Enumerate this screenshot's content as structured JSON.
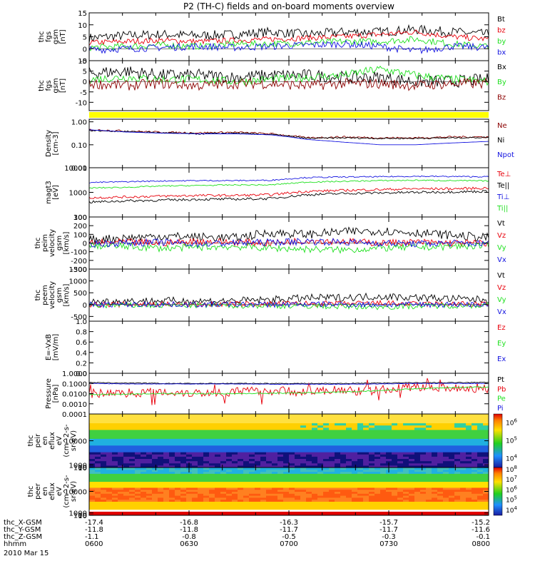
{
  "title": "P2 (TH-C) fields and on-board moments overview",
  "date_label": "2010 Mar 15",
  "colors": {
    "black": "#000000",
    "red": "#e8000b",
    "green": "#1fe01f",
    "blue": "#1414e0",
    "yellow": "#ffff00",
    "darkred": "#8b0000"
  },
  "chart_data": [
    {
      "type": "line",
      "id": "p1",
      "ylabel": [
        "thc",
        "fgs",
        "gsm",
        "[nT]"
      ],
      "ylim": [
        -5,
        15
      ],
      "yticks": [
        -5,
        0,
        5,
        10,
        15
      ],
      "series": [
        {
          "name": "Bt",
          "color": "black",
          "base": [
            4.5,
            5.5,
            6,
            5.5,
            6,
            7,
            6,
            7,
            7,
            8,
            7,
            6
          ],
          "noise": 2
        },
        {
          "name": "bz",
          "color": "red",
          "base": [
            2.5,
            3,
            3.5,
            3,
            3.5,
            4,
            4.5,
            5,
            6,
            7,
            5,
            4
          ],
          "noise": 1.2
        },
        {
          "name": "by",
          "color": "green",
          "base": [
            0.5,
            1,
            1.5,
            1,
            2,
            2,
            2.5,
            3,
            3,
            4,
            2,
            1
          ],
          "noise": 1.4
        },
        {
          "name": "bx",
          "color": "blue",
          "base": [
            -0.5,
            0,
            0.5,
            1,
            0.5,
            1,
            1.5,
            2,
            1,
            -1,
            1,
            0.5
          ],
          "noise": 1.5
        }
      ]
    },
    {
      "type": "line",
      "id": "p2",
      "ylabel": [
        "thc",
        "fgs",
        "gsm",
        "[nT]"
      ],
      "ylim": [
        -14,
        10
      ],
      "yticks": [
        -10,
        -5,
        0,
        5,
        10
      ],
      "series": [
        {
          "name": "Bx",
          "color": "black",
          "base": [
            4,
            5,
            3,
            3,
            2,
            3,
            3,
            2,
            2,
            0,
            0,
            1
          ],
          "noise": 3
        },
        {
          "name": "By",
          "color": "green",
          "base": [
            1,
            2,
            1,
            1,
            0,
            1,
            2,
            3,
            6,
            3,
            1,
            0
          ],
          "noise": 2
        },
        {
          "name": "Bz",
          "color": "darkred",
          "base": [
            -1,
            -2,
            -1,
            -2,
            -1,
            -1,
            -2,
            -1,
            -1,
            -2,
            -1,
            -1
          ],
          "noise": 2.5
        }
      ]
    },
    {
      "type": "line",
      "id": "p3",
      "log": true,
      "ylabel": [
        "Density",
        "[cm-3]"
      ],
      "ylim": [
        0.01,
        1.3
      ],
      "yticks": [
        0.01,
        0.1,
        1.0
      ],
      "yticklabels": [
        "0.01",
        "0.10",
        "1.00"
      ],
      "series": [
        {
          "name": "Ne",
          "color": "darkred",
          "base": [
            0.45,
            0.4,
            0.35,
            0.33,
            0.35,
            0.3,
            0.2,
            0.22,
            0.2,
            0.2,
            0.22,
            0.22
          ],
          "noise": 0.08
        },
        {
          "name": "Ni",
          "color": "black",
          "base": [
            0.42,
            0.38,
            0.33,
            0.3,
            0.32,
            0.28,
            0.19,
            0.2,
            0.19,
            0.19,
            0.2,
            0.21
          ],
          "noise": 0.06
        },
        {
          "name": "Npot",
          "color": "blue",
          "base": [
            0.45,
            0.36,
            0.32,
            0.3,
            0.3,
            0.27,
            0.17,
            0.13,
            0.1,
            0.1,
            0.12,
            0.14
          ],
          "noise": 0
        }
      ]
    },
    {
      "type": "line",
      "id": "p4",
      "log": true,
      "ylabel": [
        "magt3",
        "[eV]"
      ],
      "ylim": [
        100,
        10000
      ],
      "yticks": [
        100,
        1000,
        10000
      ],
      "yticklabels": [
        "100",
        "1000",
        "10000"
      ],
      "series": [
        {
          "name": "Te⊥",
          "color": "red",
          "base": [
            600,
            650,
            700,
            750,
            750,
            800,
            1100,
            1200,
            1300,
            1400,
            1400,
            1500
          ],
          "noise": 0.1
        },
        {
          "name": "Te||",
          "color": "black",
          "base": [
            400,
            450,
            480,
            520,
            530,
            560,
            800,
            900,
            950,
            1000,
            1050,
            1100
          ],
          "noise": 0.1
        },
        {
          "name": "Ti⊥",
          "color": "blue",
          "base": [
            2500,
            2700,
            2900,
            3000,
            3000,
            3100,
            4000,
            4200,
            4300,
            4500,
            4400,
            4300
          ],
          "noise": 0.05
        },
        {
          "name": "Ti||",
          "color": "green",
          "base": [
            1500,
            1600,
            1800,
            1900,
            2000,
            2000,
            2600,
            2800,
            3000,
            3100,
            3000,
            2900
          ],
          "noise": 0.05
        }
      ]
    },
    {
      "type": "line",
      "id": "p5",
      "ylabel": [
        "thc",
        "peim",
        "velocity",
        "gsm",
        "[km/s]"
      ],
      "ylim": [
        -300,
        300
      ],
      "yticks": [
        -300,
        -200,
        -100,
        0,
        100,
        200,
        300
      ],
      "series": [
        {
          "name": "Vt",
          "color": "black",
          "base": [
            40,
            60,
            80,
            70,
            60,
            120,
            100,
            130,
            140,
            120,
            90,
            60
          ],
          "noise": 50
        },
        {
          "name": "Vz",
          "color": "red",
          "base": [
            0,
            10,
            0,
            20,
            10,
            0,
            30,
            20,
            0,
            10,
            0,
            0
          ],
          "noise": 40
        },
        {
          "name": "Vy",
          "color": "green",
          "base": [
            -30,
            -40,
            -60,
            -50,
            -40,
            -60,
            -70,
            -80,
            -60,
            -50,
            -40,
            -30
          ],
          "noise": 40
        },
        {
          "name": "Vx",
          "color": "blue",
          "base": [
            -10,
            0,
            10,
            -10,
            0,
            10,
            20,
            10,
            0,
            -10,
            0,
            -10
          ],
          "noise": 40
        }
      ]
    },
    {
      "type": "line",
      "id": "p6",
      "ylabel": [
        "thc",
        "peem",
        "velocity",
        "gsm",
        "[km/s]"
      ],
      "ylim": [
        -700,
        1500
      ],
      "yticks": [
        -500,
        0,
        500,
        1000,
        1500
      ],
      "series": [
        {
          "name": "Vt",
          "color": "black",
          "base": [
            120,
            150,
            160,
            150,
            160,
            200,
            280,
            300,
            350,
            300,
            250,
            200
          ],
          "noise": 160
        },
        {
          "name": "Vz",
          "color": "red",
          "base": [
            0,
            10,
            20,
            10,
            20,
            30,
            40,
            30,
            60,
            20,
            30,
            10
          ],
          "noise": 120
        },
        {
          "name": "Vy",
          "color": "green",
          "base": [
            -40,
            -30,
            -40,
            -30,
            -40,
            -50,
            -60,
            -80,
            -100,
            -60,
            -40,
            -30
          ],
          "noise": 120
        },
        {
          "name": "Vx",
          "color": "blue",
          "base": [
            0,
            0,
            10,
            0,
            10,
            0,
            20,
            10,
            0,
            0,
            10,
            0
          ],
          "noise": 120
        }
      ]
    },
    {
      "type": "line",
      "id": "p7",
      "ylabel": [
        "E=-VxB",
        "[mV/m]"
      ],
      "ylim": [
        0,
        1
      ],
      "yticks": [
        0.0,
        0.2,
        0.4,
        0.6,
        0.8,
        1.0
      ],
      "yticklabels": [
        "0.0",
        "0.2",
        "0.4",
        "0.6",
        "0.8",
        "1.0"
      ],
      "series": [
        {
          "name": "Ez",
          "color": "red",
          "base": [],
          "noise": 0
        },
        {
          "name": "Ey",
          "color": "green",
          "base": [],
          "noise": 0
        },
        {
          "name": "Ex",
          "color": "blue",
          "base": [],
          "noise": 0
        }
      ]
    },
    {
      "type": "line",
      "id": "p8",
      "log": true,
      "ylabel": [
        "Pressure",
        "[nPa]"
      ],
      "ylim": [
        0.0001,
        1.0
      ],
      "yticks": [
        0.0001,
        0.001,
        0.01,
        0.1,
        1.0
      ],
      "yticklabels": [
        "0.0001",
        "0.0010",
        "0.0100",
        "0.1000",
        "1.0000"
      ],
      "series": [
        {
          "name": "Pt",
          "color": "black",
          "base": [
            0.12,
            0.11,
            0.1,
            0.1,
            0.1,
            0.1,
            0.1,
            0.1,
            0.11,
            0.12,
            0.12,
            0.13
          ],
          "noise": 0.08
        },
        {
          "name": "Pb",
          "color": "red",
          "base": [
            0.01,
            0.012,
            0.015,
            0.012,
            0.015,
            0.02,
            0.015,
            0.02,
            0.02,
            0.05,
            0.04,
            0.03
          ],
          "noise": 0.9
        },
        {
          "name": "Pe",
          "color": "green",
          "base": [
            0.008,
            0.009,
            0.01,
            0.01,
            0.01,
            0.011,
            0.012,
            0.014,
            0.02,
            0.03,
            0.04,
            0.045
          ],
          "noise": 0.1
        },
        {
          "name": "Pi",
          "color": "blue",
          "base": [
            0.1,
            0.09,
            0.09,
            0.09,
            0.09,
            0.085,
            0.085,
            0.085,
            0.09,
            0.1,
            0.1,
            0.1
          ],
          "noise": 0.05
        }
      ]
    },
    {
      "type": "heatmap",
      "id": "p9",
      "ylabel": [
        "thc",
        "peir",
        "en",
        "eflux",
        "eV",
        "(cm^2-s-",
        "sr-eV)"
      ],
      "ylim": [
        10,
        20000
      ],
      "yticks": [
        10,
        100,
        1000,
        10000
      ],
      "yticklabels": [
        "10",
        "100",
        "1000",
        "10000"
      ],
      "colorbar": {
        "ticks": [
          "10^4",
          "10^5",
          "10^6"
        ],
        "range": [
          3.5,
          6.5
        ]
      }
    },
    {
      "type": "heatmap",
      "id": "p10",
      "ylabel": [
        "thc",
        "peer",
        "en",
        "eflux",
        "eV",
        "(cm^2-s-",
        "sr-eV)"
      ],
      "ylim": [
        8,
        20000
      ],
      "yticks": [
        10,
        100,
        1000,
        10000
      ],
      "yticklabels": [
        "10",
        "100",
        "1000",
        "10000"
      ],
      "colorbar": {
        "ticks": [
          "10^4",
          "10^5",
          "10^6",
          "10^7",
          "10^8"
        ],
        "range": [
          3.5,
          8.2
        ]
      }
    }
  ],
  "xaxis": {
    "row_labels": [
      "thc_X-GSM",
      "thc_Y-GSM",
      "thc_Z-GSM",
      "hhmm"
    ],
    "ticks": [
      {
        "t": 0,
        "x": "-17.4",
        "y": "-11.8",
        "z": "-1.1",
        "hhmm": "0600"
      },
      {
        "t": 30,
        "x": "-16.8",
        "y": "-11.8",
        "z": "-0.8",
        "hhmm": "0630"
      },
      {
        "t": 60,
        "x": "-16.3",
        "y": "-11.7",
        "z": "-0.5",
        "hhmm": "0700"
      },
      {
        "t": 90,
        "x": "-15.7",
        "y": "-11.7",
        "z": "-0.3",
        "hhmm": "0730"
      },
      {
        "t": 120,
        "x": "-15.2",
        "y": "-11.6",
        "z": "-0.1",
        "hhmm": "0800"
      }
    ],
    "xlim": [
      0,
      120
    ]
  }
}
